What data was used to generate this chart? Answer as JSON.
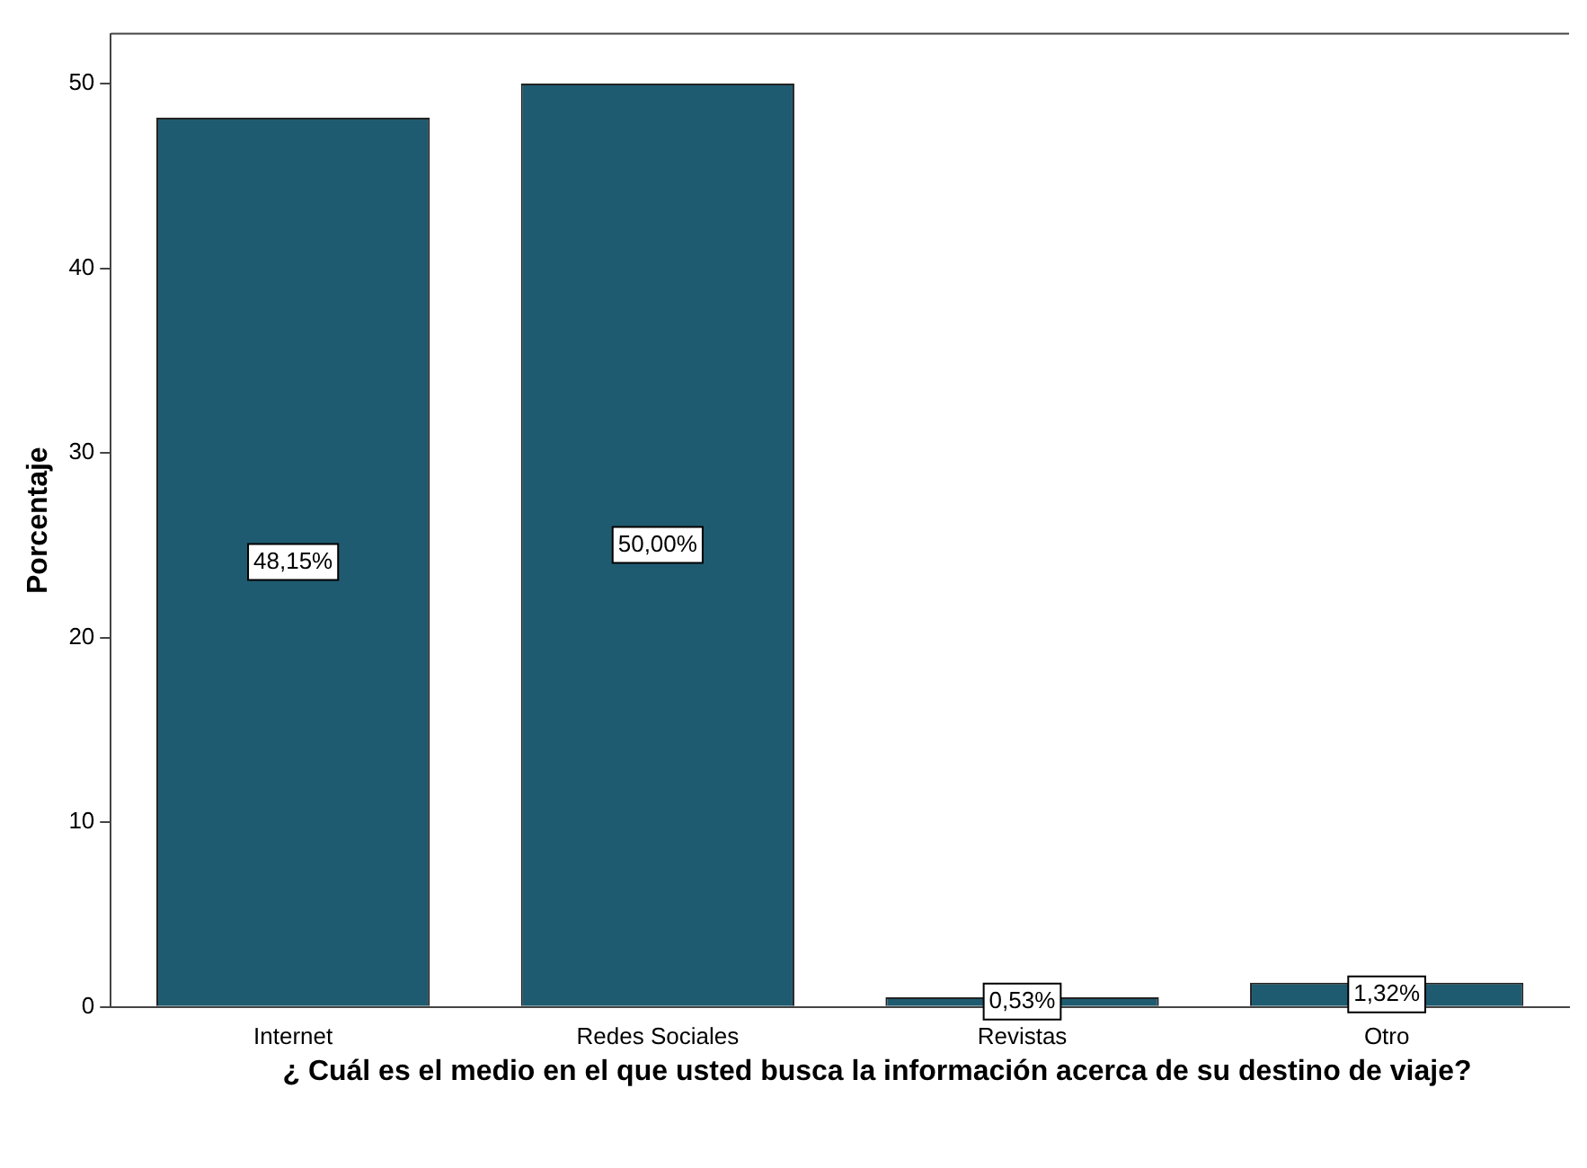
{
  "chart_data": {
    "type": "bar",
    "xlabel": "¿ Cuál es el medio en el que usted busca la información acerca de su destino de viaje?",
    "ylabel": "Porcentaje",
    "categories": [
      "Internet",
      "Redes Sociales",
      "Revistas",
      "Otro"
    ],
    "values": [
      48.15,
      50.0,
      0.53,
      1.32
    ],
    "value_labels": [
      "48,15%",
      "50,00%",
      "0,53%",
      "1,32%"
    ],
    "color": "#1f5b70",
    "ylim": [
      0,
      52.7
    ],
    "yticks": [
      0,
      10,
      20,
      30,
      40,
      50
    ],
    "grid": false,
    "legend": false
  }
}
